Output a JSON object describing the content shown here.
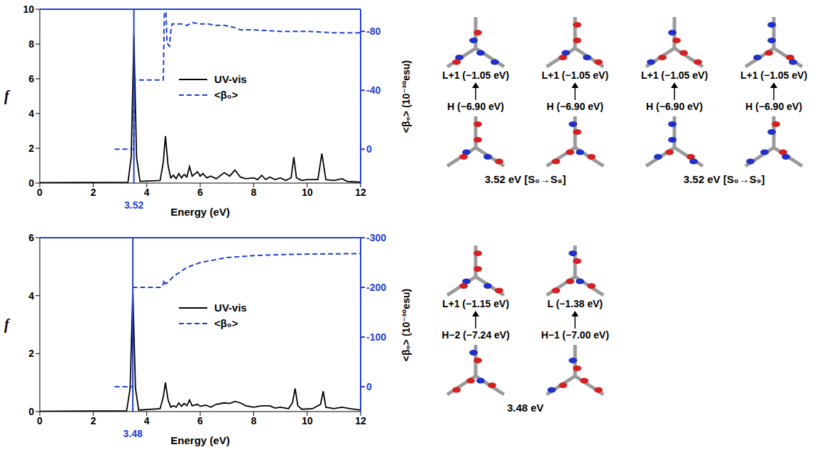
{
  "chart_data": [
    {
      "type": "line",
      "x_label": "Energy (eV)",
      "y_label": "f",
      "y2_label": "<β₀> (10⁻³⁰esu)",
      "xlim": [
        0,
        12
      ],
      "xticks": [
        0,
        2,
        4,
        6,
        8,
        10,
        12
      ],
      "ylim": [
        0,
        10
      ],
      "yticks": [
        0,
        2,
        4,
        6,
        8,
        10
      ],
      "y2lim": [
        23,
        -95
      ],
      "y2ticks": [
        0,
        -40,
        -80
      ],
      "legend": "center",
      "annotations": [
        {
          "x": 3.52,
          "label": "3.52"
        }
      ],
      "series": [
        {
          "name": "UV-vis",
          "color": "#000000",
          "line_style": "solid",
          "x": [
            0,
            3.3,
            3.42,
            3.52,
            3.62,
            3.75,
            4.5,
            4.62,
            4.7,
            4.8,
            4.9,
            5.0,
            5.1,
            5.2,
            5.3,
            5.4,
            5.5,
            5.6,
            5.7,
            5.9,
            6.0,
            6.1,
            6.25,
            6.4,
            6.6,
            6.9,
            7.1,
            7.3,
            7.5,
            7.7,
            8.0,
            8.15,
            8.3,
            8.45,
            8.6,
            8.8,
            9.0,
            9.2,
            9.4,
            9.5,
            9.6,
            9.8,
            10.0,
            10.4,
            10.55,
            10.7,
            11.0,
            11.3,
            11.5,
            12
          ],
          "values": [
            0.02,
            0.05,
            1.5,
            8.5,
            1.5,
            0.1,
            0.15,
            1.2,
            2.7,
            1.0,
            0.3,
            0.45,
            0.25,
            0.55,
            0.3,
            0.5,
            0.35,
            0.95,
            0.4,
            0.65,
            0.4,
            0.55,
            0.3,
            0.4,
            0.25,
            0.6,
            0.4,
            0.75,
            0.35,
            0.25,
            0.3,
            0.2,
            0.45,
            0.2,
            0.35,
            0.2,
            0.3,
            0.15,
            0.3,
            1.5,
            0.3,
            0.15,
            0.2,
            0.2,
            1.7,
            0.2,
            0.15,
            0.25,
            0.1,
            0.05
          ]
        },
        {
          "name": "<β₀>",
          "color": "#1f3fd0",
          "line_style": "dashed",
          "axis": "y2",
          "x": [
            2.8,
            3.52,
            3.52,
            4.62,
            4.66,
            4.72,
            4.76,
            4.85,
            4.9,
            4.95,
            5.3,
            5.5,
            5.7,
            6.0,
            6.3,
            6.6,
            6.9,
            7.2,
            7.5,
            8,
            9,
            10,
            11,
            12
          ],
          "values": [
            0,
            0,
            -47,
            -47,
            -93,
            -93,
            -72,
            -70,
            -80,
            -85,
            -85,
            -84,
            -86,
            -85,
            -85,
            -84,
            -84,
            -83,
            -81,
            -81,
            -80,
            -80,
            -79,
            -79
          ]
        }
      ]
    },
    {
      "type": "line",
      "x_label": "Energy (eV)",
      "y_label": "f",
      "y2_label": "<β₀> (10⁻³⁰esu)",
      "xlim": [
        0,
        12
      ],
      "xticks": [
        0,
        2,
        4,
        6,
        8,
        10,
        12
      ],
      "ylim": [
        0,
        6
      ],
      "yticks": [
        0,
        2,
        4,
        6
      ],
      "y2lim": [
        50,
        -300
      ],
      "y2ticks": [
        0,
        -100,
        -200,
        -300
      ],
      "legend": "center",
      "annotations": [
        {
          "x": 3.48,
          "label": "3.48"
        }
      ],
      "series": [
        {
          "name": "UV-vis",
          "color": "#000000",
          "line_style": "solid",
          "x": [
            0,
            3.25,
            3.38,
            3.48,
            3.58,
            3.7,
            4.5,
            4.62,
            4.7,
            4.8,
            4.9,
            5.0,
            5.1,
            5.2,
            5.3,
            5.4,
            5.5,
            5.6,
            5.7,
            5.9,
            6.0,
            6.2,
            6.4,
            6.6,
            6.9,
            7.1,
            7.3,
            7.5,
            7.7,
            8.0,
            8.3,
            8.6,
            8.8,
            9.0,
            9.3,
            9.45,
            9.55,
            9.65,
            9.8,
            10.2,
            10.5,
            10.6,
            10.7,
            11.0,
            11.3,
            11.6,
            12
          ],
          "values": [
            0.01,
            0.03,
            0.8,
            4.15,
            0.8,
            0.05,
            0.1,
            0.5,
            1.0,
            0.4,
            0.15,
            0.2,
            0.15,
            0.3,
            0.18,
            0.28,
            0.2,
            0.4,
            0.2,
            0.25,
            0.18,
            0.22,
            0.15,
            0.25,
            0.3,
            0.28,
            0.35,
            0.3,
            0.2,
            0.15,
            0.2,
            0.2,
            0.12,
            0.15,
            0.1,
            0.3,
            0.8,
            0.2,
            0.08,
            0.1,
            0.25,
            0.7,
            0.15,
            0.1,
            0.15,
            0.1,
            0.05
          ]
        },
        {
          "name": "<β₀>",
          "color": "#1f3fd0",
          "line_style": "dashed",
          "axis": "y2",
          "x": [
            2.8,
            3.48,
            3.48,
            4.5,
            4.6,
            4.65,
            4.7,
            4.8,
            5.0,
            5.5,
            6.0,
            6.5,
            7.0,
            8.0,
            9.0,
            10.0,
            12
          ],
          "values": [
            0,
            0,
            -200,
            -200,
            -203,
            -215,
            -207,
            -210,
            -222,
            -240,
            -250,
            -255,
            -260,
            -264,
            -266,
            -267,
            -268
          ]
        }
      ]
    }
  ],
  "orbital_panels": [
    {
      "groups": [
        {
          "caption": "3.52 eV [S₀→S₈]",
          "transitions": [
            {
              "upper": "L+1 (−1.05 eV)",
              "lower": "H (−6.90 eV)"
            },
            {
              "upper": "L+1 (−1.05 eV)",
              "lower": "H (−6.90 eV)"
            }
          ]
        },
        {
          "caption": "3.52 eV [S₀→S₉]",
          "transitions": [
            {
              "upper": "L+1 (−1.05 eV)",
              "lower": "H (−6.90 eV)"
            },
            {
              "upper": "L+1 (−1.05 eV)",
              "lower": "H (−6.90 eV)"
            }
          ]
        }
      ]
    },
    {
      "groups": [
        {
          "caption": "3.48 eV",
          "transitions": [
            {
              "upper": "L+1 (−1.15 eV)",
              "lower": "H−2 (−7.24 eV)"
            },
            {
              "upper": "L (−1.38 eV)",
              "lower": "H−1 (−7.00 eV)"
            }
          ]
        }
      ]
    }
  ]
}
